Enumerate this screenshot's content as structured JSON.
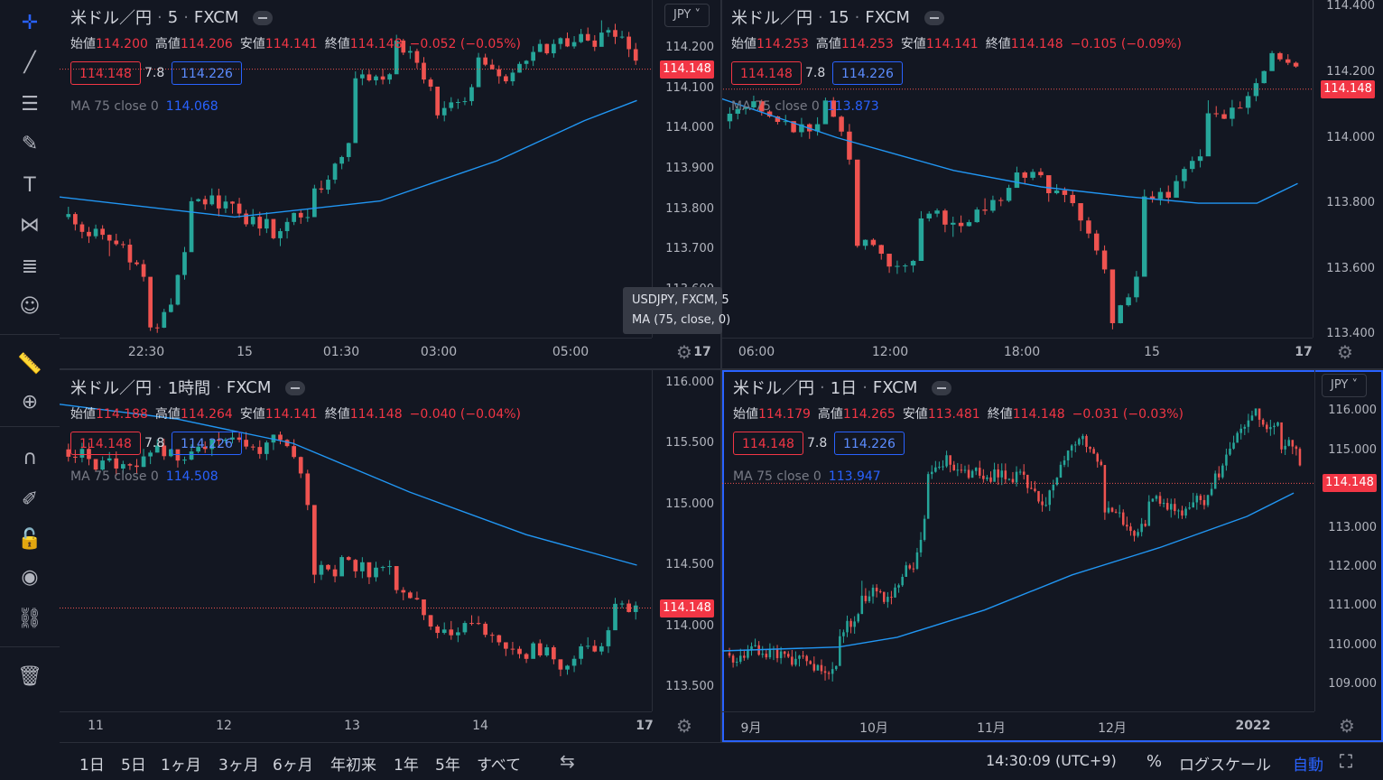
{
  "toolbar": {
    "tools": [
      {
        "name": "crosshair-icon",
        "glyph": "✛",
        "active": true
      },
      {
        "name": "trend-line-icon",
        "glyph": "╱"
      },
      {
        "name": "horizontal-lines-icon",
        "glyph": "☰"
      },
      {
        "name": "brush-icon",
        "glyph": "✎"
      },
      {
        "name": "text-icon",
        "glyph": "T"
      },
      {
        "name": "pattern-icon",
        "glyph": "⋈"
      },
      {
        "name": "fib-icon",
        "glyph": "≣"
      },
      {
        "name": "emoji-icon",
        "glyph": "☺"
      },
      {
        "name": "ruler-icon",
        "glyph": "📏"
      },
      {
        "name": "zoom-in-icon",
        "glyph": "⊕"
      },
      {
        "name": "magnet-icon",
        "glyph": "∩"
      },
      {
        "name": "lock-drawing-icon",
        "glyph": "✐"
      },
      {
        "name": "lock-icon",
        "glyph": "🔓"
      },
      {
        "name": "eye-icon",
        "glyph": "◉"
      },
      {
        "name": "link-icon",
        "glyph": "⛓"
      },
      {
        "name": "trash-icon",
        "glyph": "🗑"
      }
    ]
  },
  "colors": {
    "up": "#26a69a",
    "down": "#ef5350",
    "ma": "#2196f3",
    "accent": "#2962ff",
    "background": "#131722"
  },
  "panes": [
    {
      "id": "p5m",
      "title": "米ドル／円",
      "interval": "5",
      "exchange": "FXCM",
      "ohlc": {
        "o_label": "始値",
        "o": "114.200",
        "h_label": "高値",
        "h": "114.206",
        "l_label": "安値",
        "l": "114.141",
        "c_label": "終値",
        "c": "114.148",
        "change": "−0.052 (−0.05%)"
      },
      "bid": "114.148",
      "spread": "7.8",
      "ask": "114.226",
      "ma_label": "MA 75 close 0",
      "ma_value": "114.068",
      "last_price": "114.148",
      "currency_btn": "JPY",
      "y_ticks": [
        "114.200",
        "114.100",
        "114.000",
        "113.900",
        "113.800",
        "113.700",
        "113.600"
      ],
      "x_ticks": [
        "22:30",
        "15",
        "01:30",
        "03:00",
        "05:00",
        "17"
      ],
      "tooltip": {
        "line1": "USDJPY, FXCM, 5",
        "line2": "MA (75, close, 0)"
      }
    },
    {
      "id": "p15m",
      "title": "米ドル／円",
      "interval": "15",
      "exchange": "FXCM",
      "ohlc": {
        "o_label": "始値",
        "o": "114.253",
        "h_label": "高値",
        "h": "114.253",
        "l_label": "安値",
        "l": "114.141",
        "c_label": "終値",
        "c": "114.148",
        "change": "−0.105 (−0.09%)"
      },
      "bid": "114.148",
      "spread": "7.8",
      "ask": "114.226",
      "ma_label": "MA 75 close 0",
      "ma_value": "113.873",
      "last_price": "114.148",
      "y_ticks": [
        "114.400",
        "114.200",
        "114.000",
        "113.800",
        "113.600",
        "113.400"
      ],
      "x_ticks": [
        "06:00",
        "12:00",
        "18:00",
        "15",
        "17"
      ]
    },
    {
      "id": "p1h",
      "title": "米ドル／円",
      "interval": "1時間",
      "exchange": "FXCM",
      "ohlc": {
        "o_label": "始値",
        "o": "114.188",
        "h_label": "高値",
        "h": "114.264",
        "l_label": "安値",
        "l": "114.141",
        "c_label": "終値",
        "c": "114.148",
        "change": "−0.040 (−0.04%)"
      },
      "bid": "114.148",
      "spread": "7.8",
      "ask": "114.226",
      "ma_label": "MA 75 close 0",
      "ma_value": "114.508",
      "last_price": "114.148",
      "y_ticks": [
        "116.000",
        "115.500",
        "115.000",
        "114.500",
        "114.000",
        "113.500"
      ],
      "x_ticks": [
        "11",
        "12",
        "13",
        "14",
        "17"
      ]
    },
    {
      "id": "p1d",
      "title": "米ドル／円",
      "interval": "1日",
      "exchange": "FXCM",
      "ohlc": {
        "o_label": "始値",
        "o": "114.179",
        "h_label": "高値",
        "h": "114.265",
        "l_label": "安値",
        "l": "113.481",
        "c_label": "終値",
        "c": "114.148",
        "change": "−0.031 (−0.03%)"
      },
      "bid": "114.148",
      "spread": "7.8",
      "ask": "114.226",
      "ma_label": "MA 75 close 0",
      "ma_value": "113.947",
      "last_price": "114.148",
      "currency_btn": "JPY",
      "y_ticks": [
        "116.000",
        "115.000",
        "114.000",
        "113.000",
        "112.000",
        "111.000",
        "110.000",
        "109.000"
      ],
      "x_ticks": [
        "9月",
        "10月",
        "11月",
        "12月",
        "2022"
      ]
    }
  ],
  "bottom_bar": {
    "ranges": [
      "1日",
      "5日",
      "1ヶ月",
      "3ヶ月",
      "6ヶ月",
      "年初来",
      "1年",
      "5年",
      "すべて"
    ],
    "clock": "14:30:09 (UTC+9)",
    "percent": "%",
    "log_scale": "ログスケール",
    "auto": "自動"
  }
}
